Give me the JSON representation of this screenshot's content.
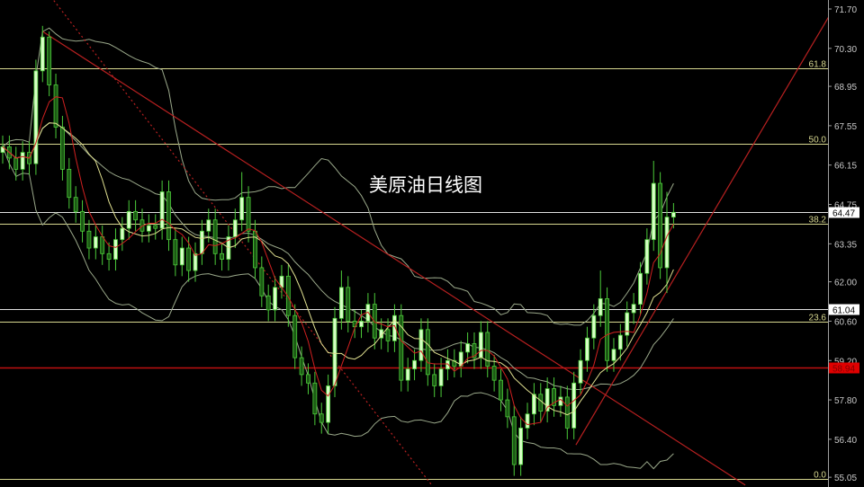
{
  "chart_data": {
    "type": "candlestick",
    "title": "美原油日线图",
    "ylim": [
      55.0,
      72.0
    ],
    "y_ticks": [
      "71.70",
      "70.30",
      "68.95",
      "67.55",
      "66.15",
      "64.75",
      "63.35",
      "62.00",
      "60.60",
      "59.20",
      "57.80",
      "56.40",
      "55.05"
    ],
    "grid": false,
    "colors": {
      "background": "#000000",
      "candle_bull_fill": "#d6ffc4",
      "candle_bear_fill": "#1c5a14",
      "candle_stroke": "#4ccc3a",
      "ma_fast": "#d02020",
      "ma_slow": "#e0e090",
      "bands": "#9aa88a",
      "trendline": "#b82020",
      "fib": "#d8d890",
      "level_white": "#e0e0e0",
      "level_red": "#c01010"
    },
    "indicators": [
      "ma-5",
      "ma-10",
      "bollinger-20"
    ],
    "ohlc": [
      [
        66.6,
        67.2,
        66.2,
        66.8
      ],
      [
        66.8,
        67.2,
        66.0,
        66.4
      ],
      [
        66.4,
        66.8,
        65.6,
        66.0
      ],
      [
        66.0,
        67.0,
        65.6,
        66.6
      ],
      [
        66.6,
        67.0,
        65.8,
        66.2
      ],
      [
        66.2,
        69.9,
        65.8,
        69.5
      ],
      [
        69.5,
        71.1,
        69.1,
        70.7
      ],
      [
        70.7,
        70.9,
        68.6,
        69.0
      ],
      [
        69.0,
        69.4,
        67.1,
        67.5
      ],
      [
        67.5,
        67.9,
        65.6,
        66.0
      ],
      [
        66.0,
        66.4,
        64.6,
        65.0
      ],
      [
        65.0,
        65.4,
        64.1,
        64.5
      ],
      [
        64.5,
        64.9,
        63.4,
        63.8
      ],
      [
        63.8,
        64.2,
        62.8,
        63.2
      ],
      [
        63.2,
        64.0,
        62.8,
        63.6
      ],
      [
        63.6,
        64.0,
        62.6,
        63.0
      ],
      [
        63.0,
        63.4,
        62.4,
        62.8
      ],
      [
        62.8,
        63.9,
        62.4,
        63.5
      ],
      [
        63.5,
        64.3,
        63.1,
        63.9
      ],
      [
        63.9,
        64.9,
        63.5,
        64.5
      ],
      [
        64.5,
        64.9,
        63.8,
        64.2
      ],
      [
        64.2,
        64.6,
        63.4,
        63.8
      ],
      [
        63.8,
        64.4,
        63.4,
        64.0
      ],
      [
        64.0,
        64.4,
        63.5,
        63.9
      ],
      [
        63.9,
        65.6,
        63.5,
        65.2
      ],
      [
        65.2,
        65.6,
        63.1,
        63.5
      ],
      [
        63.5,
        63.9,
        62.2,
        62.6
      ],
      [
        62.6,
        63.6,
        62.2,
        63.2
      ],
      [
        63.2,
        63.6,
        62.0,
        62.4
      ],
      [
        62.4,
        63.4,
        62.0,
        63.0
      ],
      [
        63.0,
        64.2,
        62.6,
        63.8
      ],
      [
        63.8,
        64.6,
        63.4,
        64.2
      ],
      [
        64.2,
        64.6,
        62.6,
        63.0
      ],
      [
        63.0,
        63.4,
        62.4,
        62.8
      ],
      [
        62.8,
        64.0,
        62.4,
        63.6
      ],
      [
        63.6,
        64.6,
        63.2,
        64.2
      ],
      [
        64.2,
        65.9,
        63.8,
        65.0
      ],
      [
        65.0,
        65.4,
        63.4,
        63.8
      ],
      [
        63.8,
        64.2,
        62.1,
        62.5
      ],
      [
        62.5,
        62.9,
        61.1,
        61.5
      ],
      [
        61.5,
        61.9,
        60.6,
        61.0
      ],
      [
        61.0,
        62.2,
        60.6,
        61.8
      ],
      [
        61.8,
        62.6,
        61.4,
        62.2
      ],
      [
        62.2,
        62.6,
        60.4,
        60.8
      ],
      [
        60.8,
        61.2,
        58.9,
        59.3
      ],
      [
        59.3,
        59.7,
        58.3,
        58.7
      ],
      [
        58.7,
        59.1,
        58.0,
        58.4
      ],
      [
        58.4,
        58.8,
        56.9,
        57.3
      ],
      [
        57.3,
        57.7,
        56.6,
        57.0
      ],
      [
        57.0,
        58.7,
        56.6,
        58.3
      ],
      [
        58.3,
        61.1,
        57.9,
        60.7
      ],
      [
        60.7,
        62.4,
        60.3,
        61.8
      ],
      [
        61.8,
        62.2,
        60.2,
        60.6
      ],
      [
        60.6,
        61.0,
        60.0,
        60.4
      ],
      [
        60.4,
        61.0,
        60.0,
        60.6
      ],
      [
        60.6,
        61.6,
        60.2,
        61.2
      ],
      [
        61.2,
        61.6,
        59.6,
        60.0
      ],
      [
        60.0,
        60.7,
        59.6,
        60.3
      ],
      [
        60.3,
        60.7,
        59.5,
        59.9
      ],
      [
        59.9,
        61.2,
        59.5,
        60.8
      ],
      [
        60.8,
        61.2,
        58.1,
        58.5
      ],
      [
        58.5,
        59.3,
        58.1,
        58.9
      ],
      [
        58.9,
        59.6,
        58.5,
        59.2
      ],
      [
        59.2,
        60.7,
        58.8,
        60.3
      ],
      [
        60.3,
        60.7,
        58.3,
        58.7
      ],
      [
        58.7,
        59.1,
        57.9,
        58.3
      ],
      [
        58.3,
        59.3,
        57.9,
        58.9
      ],
      [
        58.9,
        59.6,
        58.5,
        59.2
      ],
      [
        59.2,
        59.6,
        58.6,
        59.0
      ],
      [
        59.0,
        59.9,
        58.6,
        59.5
      ],
      [
        59.5,
        60.2,
        59.1,
        59.8
      ],
      [
        59.8,
        60.2,
        58.9,
        59.3
      ],
      [
        59.3,
        60.6,
        58.9,
        60.2
      ],
      [
        60.2,
        60.6,
        58.6,
        59.0
      ],
      [
        59.0,
        59.4,
        58.1,
        58.5
      ],
      [
        58.5,
        58.9,
        57.4,
        57.8
      ],
      [
        57.8,
        58.2,
        56.8,
        57.2
      ],
      [
        57.2,
        57.6,
        55.1,
        55.5
      ],
      [
        55.5,
        57.2,
        55.1,
        56.8
      ],
      [
        56.8,
        57.7,
        56.4,
        57.3
      ],
      [
        57.3,
        58.4,
        56.9,
        58.0
      ],
      [
        58.0,
        58.4,
        57.0,
        57.4
      ],
      [
        57.4,
        58.6,
        57.0,
        58.2
      ],
      [
        58.2,
        58.6,
        57.2,
        57.6
      ],
      [
        57.6,
        58.3,
        57.2,
        57.9
      ],
      [
        57.9,
        58.3,
        56.4,
        56.8
      ],
      [
        56.8,
        58.8,
        56.4,
        58.4
      ],
      [
        58.4,
        59.6,
        58.0,
        59.2
      ],
      [
        59.2,
        60.4,
        58.8,
        60.0
      ],
      [
        60.0,
        61.2,
        59.6,
        60.8
      ],
      [
        60.8,
        62.4,
        60.4,
        61.4
      ],
      [
        61.4,
        61.8,
        58.8,
        59.2
      ],
      [
        59.2,
        60.0,
        58.8,
        59.6
      ],
      [
        59.6,
        60.5,
        59.2,
        60.1
      ],
      [
        60.1,
        61.3,
        59.7,
        60.9
      ],
      [
        60.9,
        61.6,
        60.5,
        61.2
      ],
      [
        61.2,
        62.7,
        60.8,
        62.3
      ],
      [
        62.3,
        63.9,
        61.9,
        63.5
      ],
      [
        63.5,
        66.3,
        63.1,
        65.5
      ],
      [
        65.5,
        65.9,
        62.1,
        62.5
      ],
      [
        62.5,
        65.2,
        61.6,
        64.3
      ],
      [
        64.3,
        64.8,
        63.9,
        64.47
      ]
    ],
    "fib_levels": [
      {
        "label": "61.8",
        "price": 69.6
      },
      {
        "label": "50.0",
        "price": 66.9
      },
      {
        "label": "38.2",
        "price": 64.07
      },
      {
        "label": "23.6",
        "price": 60.58
      },
      {
        "label": "0.0",
        "price": 55.0
      }
    ],
    "price_levels": [
      {
        "label": "64.47",
        "price": 64.47,
        "style": "white"
      },
      {
        "label": "61.04",
        "price": 61.04,
        "style": "white"
      },
      {
        "label": "58.94",
        "price": 58.94,
        "style": "red"
      }
    ],
    "trendlines": [
      {
        "from": [
          6,
          70.9
        ],
        "to": [
          111.8,
          54.77
        ],
        "style": "solid"
      },
      {
        "from": [
          7.7,
          72.0
        ],
        "to": [
          64.6,
          54.77
        ],
        "style": "dotted"
      },
      {
        "from": [
          86.3,
          56.2
        ],
        "to": [
          124.3,
          71.4
        ],
        "style": "solid"
      }
    ]
  }
}
